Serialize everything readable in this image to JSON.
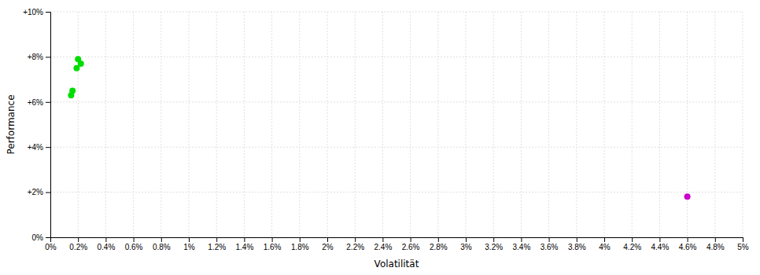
{
  "chart_data": {
    "type": "scatter",
    "xlabel": "Volatilität",
    "ylabel": "Performance",
    "xlim": [
      0,
      0.05
    ],
    "ylim": [
      0,
      0.1
    ],
    "xticks": [
      {
        "value": 0,
        "label": "0%"
      },
      {
        "value": 0.002,
        "label": "0.2%"
      },
      {
        "value": 0.004,
        "label": "0.4%"
      },
      {
        "value": 0.006,
        "label": "0.6%"
      },
      {
        "value": 0.008,
        "label": "0.8%"
      },
      {
        "value": 0.01,
        "label": "1%"
      },
      {
        "value": 0.012,
        "label": "1.2%"
      },
      {
        "value": 0.014,
        "label": "1.4%"
      },
      {
        "value": 0.016,
        "label": "1.6%"
      },
      {
        "value": 0.018,
        "label": "1.8%"
      },
      {
        "value": 0.02,
        "label": "2%"
      },
      {
        "value": 0.022,
        "label": "2.2%"
      },
      {
        "value": 0.024,
        "label": "2.4%"
      },
      {
        "value": 0.026,
        "label": "2.6%"
      },
      {
        "value": 0.028,
        "label": "2.8%"
      },
      {
        "value": 0.03,
        "label": "3%"
      },
      {
        "value": 0.032,
        "label": "3.2%"
      },
      {
        "value": 0.034,
        "label": "3.4%"
      },
      {
        "value": 0.036,
        "label": "3.6%"
      },
      {
        "value": 0.038,
        "label": "3.8%"
      },
      {
        "value": 0.04,
        "label": "4%"
      },
      {
        "value": 0.042,
        "label": "4.2%"
      },
      {
        "value": 0.044,
        "label": "4.4%"
      },
      {
        "value": 0.046,
        "label": "4.6%"
      },
      {
        "value": 0.048,
        "label": "4.8%"
      },
      {
        "value": 0.05,
        "label": "5%"
      }
    ],
    "yticks": [
      {
        "value": 0,
        "label": "0%"
      },
      {
        "value": 0.02,
        "label": "+2%"
      },
      {
        "value": 0.04,
        "label": "+4%"
      },
      {
        "value": 0.06,
        "label": "+6%"
      },
      {
        "value": 0.08,
        "label": "+8%"
      },
      {
        "value": 0.1,
        "label": "+10%"
      }
    ],
    "grid": true,
    "series": [
      {
        "color": "#00dd00",
        "x": [
          0.002,
          0.0022,
          0.0019,
          0.0016,
          0.0015
        ],
        "values": [
          0.079,
          0.077,
          0.075,
          0.065,
          0.063
        ]
      },
      {
        "color": "#cc00cc",
        "x": [
          0.046
        ],
        "values": [
          0.018
        ]
      }
    ]
  }
}
